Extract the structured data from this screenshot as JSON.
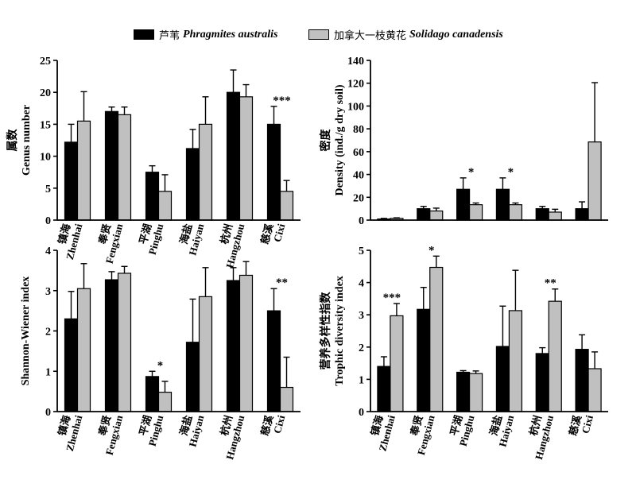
{
  "legend": [
    {
      "zh": "芦苇",
      "latin": "Phragmites australis",
      "color": "#000000"
    },
    {
      "zh": "加拿大一枝黄花",
      "latin": "Solidago canadensis",
      "color": "#c0c0c0"
    }
  ],
  "chart_data": [
    {
      "type": "bar",
      "ylabel_zh": "属数",
      "ylabel": "Genus number",
      "ylim": [
        0,
        25
      ],
      "yticks": [
        0,
        5,
        10,
        15,
        20,
        25
      ],
      "categories_zh": [
        "镇海",
        "奉贤",
        "平湖",
        "海盐",
        "杭州",
        "慈溪"
      ],
      "categories": [
        "Zhenhai",
        "Fengxian",
        "Pinghu",
        "Haiyan",
        "Hangzhou",
        "Cixi"
      ],
      "series": [
        {
          "name": "Phragmites australis",
          "values": [
            12.2,
            17.0,
            7.5,
            11.2,
            20.0,
            15.0
          ],
          "errors": [
            2.8,
            0.7,
            1.0,
            3.0,
            3.5,
            2.8
          ]
        },
        {
          "name": "Solidago canadensis",
          "values": [
            15.5,
            16.5,
            4.5,
            15.0,
            19.3,
            4.5
          ],
          "errors": [
            4.6,
            1.2,
            2.6,
            4.3,
            1.9,
            1.7
          ]
        }
      ],
      "annotations": [
        {
          "category": 5,
          "text": "***"
        }
      ]
    },
    {
      "type": "bar",
      "ylabel_zh": "密度",
      "ylabel": "Density (ind./g dry soil)",
      "ylim": [
        0,
        140
      ],
      "yticks": [
        0,
        20,
        40,
        60,
        80,
        100,
        120,
        140
      ],
      "categories_zh": [
        "镇海",
        "奉贤",
        "平湖",
        "海盐",
        "杭州",
        "慈溪"
      ],
      "categories": [
        "Zhenhai",
        "Fengxian",
        "Pinghu",
        "Haiyan",
        "Hangzhou",
        "Cixi"
      ],
      "show_category_labels": false,
      "series": [
        {
          "name": "Phragmites australis",
          "values": [
            1.0,
            10.0,
            27.0,
            27.0,
            10.0,
            10.0
          ],
          "errors": [
            0.5,
            2.0,
            10.0,
            10.0,
            2.0,
            6.0
          ]
        },
        {
          "name": "Solidago canadensis",
          "values": [
            1.5,
            8.0,
            13.5,
            13.5,
            7.0,
            68.5
          ],
          "errors": [
            0.5,
            2.5,
            1.5,
            1.5,
            2.5,
            52.0
          ]
        }
      ],
      "annotations": [
        {
          "category": 2,
          "text": "*"
        },
        {
          "category": 3,
          "text": "*"
        }
      ]
    },
    {
      "type": "bar",
      "ylabel": "Shannon-Wiener index",
      "ylim": [
        0,
        4
      ],
      "yticks": [
        0,
        1,
        2,
        3,
        4
      ],
      "categories_zh": [
        "镇海",
        "奉贤",
        "平湖",
        "海盐",
        "杭州",
        "慈溪"
      ],
      "categories": [
        "Zhenhai",
        "Fengxian",
        "Pinghu",
        "Haiyan",
        "Hangzhou",
        "Cixi"
      ],
      "series": [
        {
          "name": "Phragmites australis",
          "values": [
            2.3,
            3.27,
            0.87,
            1.72,
            3.25,
            2.5
          ],
          "errors": [
            0.68,
            0.2,
            0.13,
            1.07,
            0.32,
            0.55
          ]
        },
        {
          "name": "Solidago canadensis",
          "values": [
            3.05,
            3.43,
            0.48,
            2.85,
            3.38,
            0.6
          ],
          "errors": [
            0.62,
            0.17,
            0.27,
            0.72,
            0.34,
            0.75
          ]
        }
      ],
      "annotations": [
        {
          "category": 2,
          "text": "*"
        },
        {
          "category": 5,
          "text": "**"
        }
      ]
    },
    {
      "type": "bar",
      "ylabel_zh": "营养多样性指数",
      "ylabel": "Trophic diversity index",
      "ylim": [
        0,
        5
      ],
      "yticks": [
        0,
        1,
        2,
        3,
        4,
        5
      ],
      "categories_zh": [
        "镇海",
        "奉贤",
        "平湖",
        "海盐",
        "杭州",
        "慈溪"
      ],
      "categories": [
        "Zhenhai",
        "Fengxian",
        "Pinghu",
        "Haiyan",
        "Hangzhou",
        "Cixi"
      ],
      "series": [
        {
          "name": "Phragmites australis",
          "values": [
            1.4,
            3.17,
            1.22,
            2.02,
            1.8,
            1.93
          ],
          "errors": [
            0.3,
            0.68,
            0.05,
            1.25,
            0.18,
            0.45
          ]
        },
        {
          "name": "Solidago canadensis",
          "values": [
            2.97,
            4.47,
            1.18,
            3.13,
            3.42,
            1.33
          ],
          "errors": [
            0.38,
            0.35,
            0.08,
            1.25,
            0.38,
            0.52
          ]
        }
      ],
      "annotations": [
        {
          "category": 0,
          "text": "***"
        },
        {
          "category": 1,
          "text": "*"
        },
        {
          "category": 4,
          "text": "**"
        }
      ]
    }
  ]
}
